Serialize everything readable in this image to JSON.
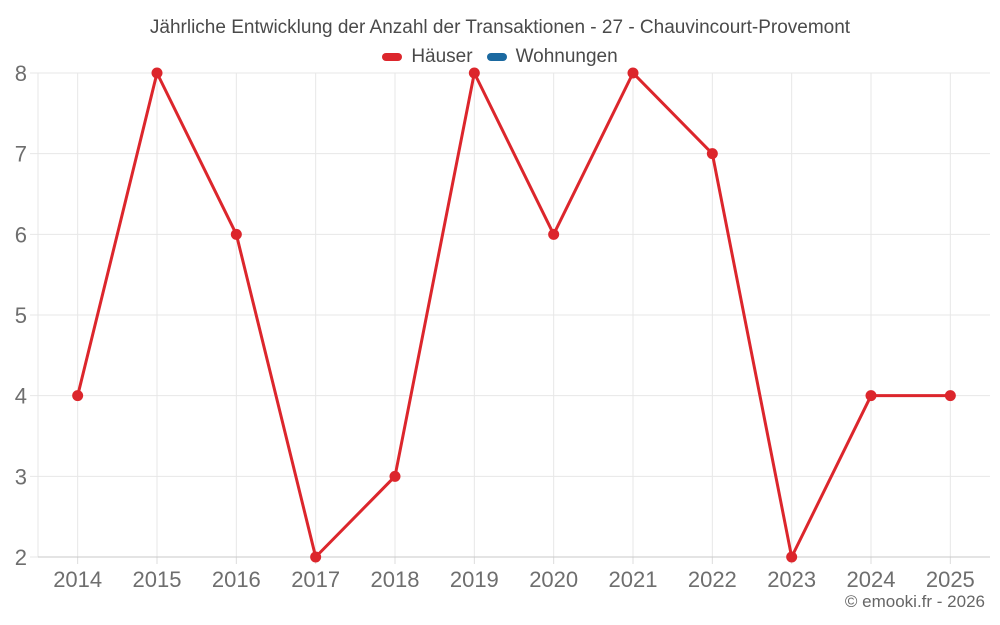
{
  "header": {
    "title": "Jährliche Entwicklung der Anzahl der Transaktionen - 27 - Chauvincourt-Provemont"
  },
  "legend": {
    "items": [
      {
        "label": "Häuser",
        "color": "#dc262c"
      },
      {
        "label": "Wohnungen",
        "color": "#1b69a0"
      }
    ]
  },
  "footer": {
    "copyright": "© emooki.fr - 2026"
  },
  "styles": {
    "grid_color": "#e7e7e7",
    "axis_color": "#c9c9c9",
    "tick_color": "#dcdcdc",
    "label_color": "#6e6e6e",
    "title_color": "#4a4a4a",
    "background": "#ffffff"
  },
  "chart_data": {
    "type": "line",
    "title": "Jährliche Entwicklung der Anzahl der Transaktionen - 27 - Chauvincourt-Provemont",
    "x": [
      2014,
      2015,
      2016,
      2017,
      2018,
      2019,
      2020,
      2021,
      2022,
      2023,
      2024,
      2025
    ],
    "series": [
      {
        "name": "Häuser",
        "color": "#dc262c",
        "values": [
          4,
          8,
          6,
          2,
          3,
          8,
          6,
          8,
          7,
          2,
          4,
          4
        ],
        "visible": true
      },
      {
        "name": "Wohnungen",
        "color": "#1b69a0",
        "values": [],
        "visible": false
      }
    ],
    "xlabel": "",
    "ylabel": "",
    "ylim": [
      2,
      8
    ],
    "yticks": [
      2,
      3,
      4,
      5,
      6,
      7,
      8
    ],
    "grid": true,
    "legend_position": "top"
  }
}
